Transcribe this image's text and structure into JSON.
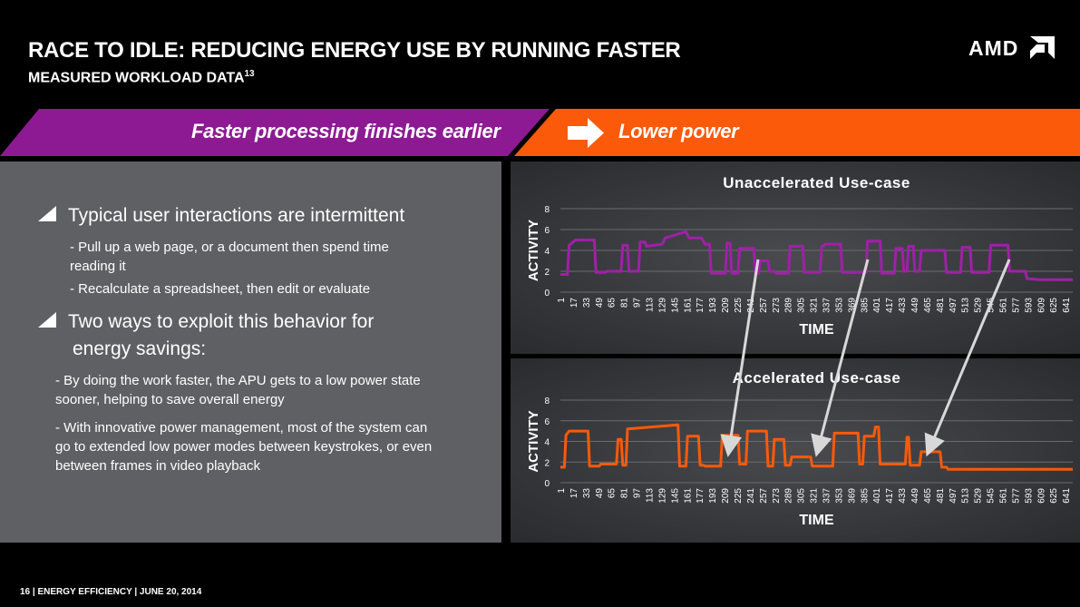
{
  "header": {
    "title": "RACE TO IDLE: REDUCING ENERGY USE BY RUNNING FASTER",
    "subtitle": "MEASURED WORKLOAD DATA",
    "subtitle_sup": "13",
    "logo": "AMD"
  },
  "banner": {
    "left_text": "Faster processing finishes earlier",
    "right_text": "Lower power",
    "left_color": "#8d1a93",
    "right_color": "#fa5a0a"
  },
  "content": {
    "bullet1": "Typical user interactions are intermittent",
    "bullet1_sub1_line1": "- Pull up a web page, or a document then spend time",
    "bullet1_sub1_line2": "reading it",
    "bullet1_sub2": "- Recalculate a spreadsheet, then edit or evaluate",
    "bullet2_line1": "Two ways to exploit this behavior for",
    "bullet2_line2": "energy savings:",
    "bullet2_sub1_line1": "- By doing the work faster, the APU gets to a low power state",
    "bullet2_sub1_line2": "sooner, helping to save overall energy",
    "bullet2_sub2_line1": "- With innovative power management, most of the system can",
    "bullet2_sub2_line2": "go to extended low power modes between keystrokes, or even",
    "bullet2_sub2_line3": "between frames in video playback"
  },
  "footer": {
    "text": "16  |  ENERGY EFFICIENCY |  JUNE 20, 2014"
  },
  "chart_data": [
    {
      "type": "line",
      "title": "Unaccelerated Use-case",
      "xlabel": "TIME",
      "ylabel": "ACTIVITY",
      "ylim": [
        0,
        8
      ],
      "yticks": [
        0,
        2,
        4,
        6,
        8
      ],
      "xticks": [
        1,
        17,
        33,
        49,
        65,
        81,
        97,
        113,
        129,
        145,
        161,
        177,
        193,
        209,
        225,
        241,
        257,
        273,
        289,
        305,
        321,
        337,
        353,
        369,
        385,
        401,
        417,
        433,
        449,
        465,
        481,
        497,
        513,
        529,
        545,
        561,
        577,
        593,
        609,
        625,
        641
      ],
      "grid": true,
      "color": "#a020a8",
      "series": [
        {
          "x": [
            1,
            10,
            12,
            20,
            44,
            46,
            58,
            60,
            78,
            80,
            86,
            88,
            100,
            102,
            108,
            110,
            130,
            134,
            160,
            164,
            180,
            184,
            190,
            192,
            210,
            212,
            216,
            218,
            226,
            228,
            246,
            248,
            252,
            254,
            264,
            266,
            272,
            274,
            290,
            292,
            308,
            310,
            330,
            332,
            334,
            336,
            356,
            358,
            388,
            390,
            406,
            408,
            424,
            426,
            434,
            436,
            440,
            442,
            448,
            450,
            456,
            458,
            488,
            490,
            508,
            510,
            520,
            522,
            544,
            546,
            568,
            570,
            590,
            592,
            608,
            610,
            650
          ],
          "y": [
            1.7,
            1.7,
            4.5,
            5.0,
            5.0,
            1.9,
            1.9,
            2.0,
            2.0,
            4.5,
            4.5,
            2.0,
            2.0,
            4.8,
            4.8,
            4.4,
            4.6,
            5.2,
            5.8,
            5.2,
            5.2,
            4.6,
            4.6,
            1.8,
            1.8,
            4.7,
            4.7,
            1.8,
            1.8,
            4.2,
            4.2,
            1.8,
            1.8,
            3.0,
            3.0,
            2.0,
            2.0,
            1.8,
            1.8,
            4.4,
            4.4,
            1.9,
            1.9,
            4.4,
            4.4,
            4.6,
            4.6,
            1.9,
            1.9,
            4.9,
            4.9,
            1.8,
            1.8,
            4.2,
            4.2,
            2.0,
            2.0,
            4.4,
            4.4,
            2.0,
            2.0,
            4.0,
            4.0,
            1.9,
            1.9,
            4.3,
            4.3,
            1.9,
            1.9,
            4.5,
            4.5,
            2.0,
            2.0,
            1.3,
            1.2,
            1.2,
            1.2
          ]
        }
      ]
    },
    {
      "type": "line",
      "title": "Accelerated Use-case",
      "xlabel": "TIME",
      "ylabel": "ACTIVITY",
      "ylim": [
        0,
        8
      ],
      "yticks": [
        0,
        2,
        4,
        6,
        8
      ],
      "xticks": [
        1,
        17,
        33,
        49,
        65,
        81,
        97,
        113,
        129,
        145,
        161,
        177,
        193,
        209,
        225,
        241,
        257,
        273,
        289,
        305,
        321,
        337,
        353,
        369,
        385,
        401,
        417,
        433,
        449,
        465,
        481,
        497,
        513,
        529,
        545,
        561,
        577,
        593,
        609,
        625,
        641
      ],
      "grid": true,
      "color": "#fa5a0a",
      "series": [
        {
          "x": [
            1,
            6,
            8,
            12,
            36,
            38,
            50,
            52,
            72,
            74,
            78,
            80,
            84,
            86,
            150,
            152,
            160,
            162,
            176,
            178,
            182,
            184,
            204,
            206,
            226,
            228,
            236,
            238,
            262,
            264,
            270,
            272,
            284,
            286,
            292,
            294,
            318,
            320,
            346,
            348,
            378,
            380,
            384,
            386,
            398,
            400,
            404,
            406,
            438,
            440,
            442,
            444,
            456,
            458,
            482,
            484,
            490,
            492,
            650
          ],
          "y": [
            1.5,
            1.5,
            4.6,
            5.0,
            5.0,
            1.6,
            1.6,
            1.8,
            1.8,
            4.2,
            4.2,
            1.7,
            1.7,
            5.2,
            5.6,
            1.6,
            1.6,
            4.5,
            4.5,
            1.7,
            1.7,
            1.6,
            1.6,
            4.6,
            4.6,
            1.8,
            1.8,
            5.0,
            5.0,
            1.6,
            1.6,
            4.2,
            4.2,
            1.7,
            1.7,
            2.5,
            2.5,
            1.6,
            1.6,
            4.8,
            4.8,
            1.8,
            1.8,
            4.5,
            4.5,
            5.4,
            5.4,
            1.8,
            1.8,
            4.4,
            4.4,
            1.7,
            1.7,
            3.0,
            3.0,
            1.5,
            1.5,
            1.3,
            1.3
          ]
        }
      ]
    }
  ]
}
